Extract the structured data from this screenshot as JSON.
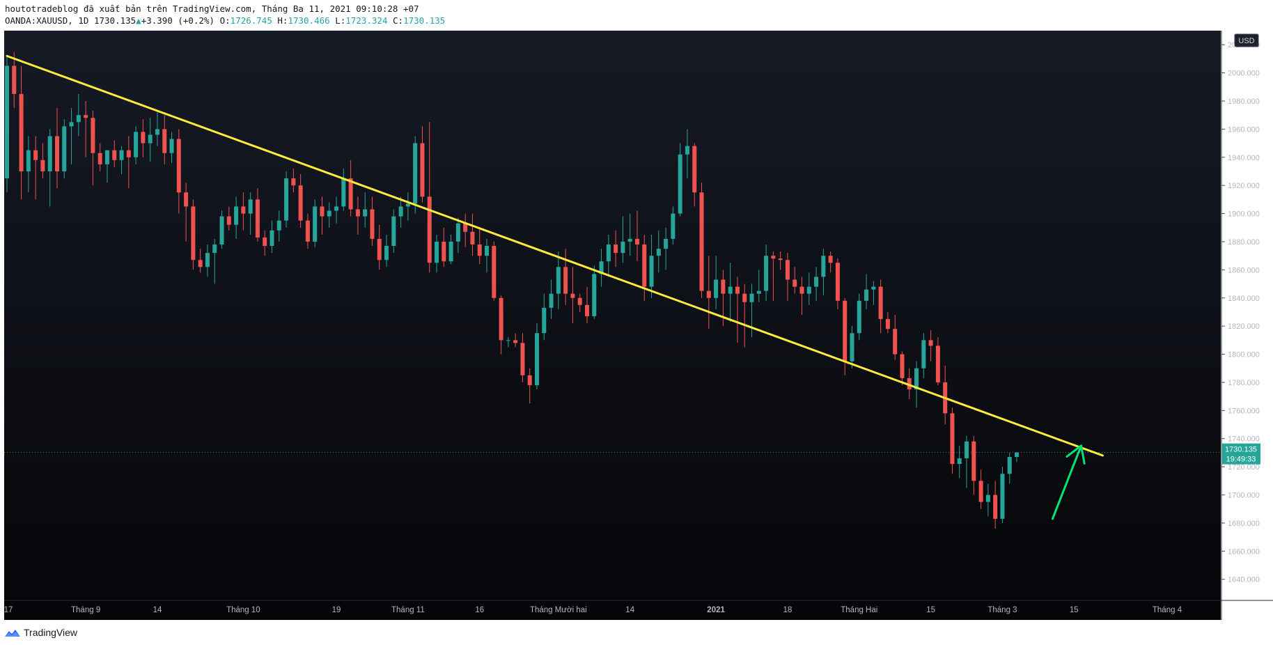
{
  "header": {
    "published_line": "houtotradeblog đã xuất bản trên TradingView.com, Tháng Ba 11, 2021 09:10:28 +07",
    "symbol_line": {
      "symbol": "OANDA:XAUUSD, 1D",
      "last": "1730.135",
      "change_arrow": "▲",
      "change": "+3.390 (+0.2%)",
      "o_label": "O:",
      "o": "1726.745",
      "h_label": "H:",
      "h": "1730.466",
      "l_label": "L:",
      "l": "1723.324",
      "c_label": "C:",
      "c": "1730.135"
    }
  },
  "footer": {
    "brand": "TradingView",
    "logo_icon": "tradingview-logo-icon"
  },
  "colors": {
    "background": "#0b0c0f",
    "up": "#26a69a",
    "down": "#ef5350",
    "trendline": "#ffeb3b",
    "arrow": "#00e676",
    "axis_text": "#b2b5be"
  },
  "chart_data": {
    "type": "candlestick",
    "symbol": "OANDA:XAUUSD",
    "interval": "1D",
    "currency": "USD",
    "ylim": [
      1625,
      2030
    ],
    "y_ticks": [
      "2020.000",
      "2000.000",
      "1980.000",
      "1960.000",
      "1940.000",
      "1920.000",
      "1900.000",
      "1880.000",
      "1860.000",
      "1840.000",
      "1820.000",
      "1800.000",
      "1780.000",
      "1760.000",
      "1740.000",
      "1720.000",
      "1700.000",
      "1680.000",
      "1660.000",
      "1640.000"
    ],
    "x_ticks": [
      {
        "label": "17",
        "bar": 0
      },
      {
        "label": "Tháng 9",
        "bar": 11
      },
      {
        "label": "14",
        "bar": 21
      },
      {
        "label": "Tháng 10",
        "bar": 33
      },
      {
        "label": "19",
        "bar": 46
      },
      {
        "label": "Tháng 11",
        "bar": 56
      },
      {
        "label": "16",
        "bar": 66
      },
      {
        "label": "Tháng Mười hai",
        "bar": 77
      },
      {
        "label": "14",
        "bar": 87
      },
      {
        "label": "2021",
        "bar": 99
      },
      {
        "label": "18",
        "bar": 109
      },
      {
        "label": "Tháng Hai",
        "bar": 119
      },
      {
        "label": "15",
        "bar": 129
      },
      {
        "label": "Tháng 3",
        "bar": 139
      },
      {
        "label": "15",
        "bar": 149
      },
      {
        "label": "Tháng 4",
        "bar": 162
      }
    ],
    "x_bar_range": [
      0,
      166
    ],
    "last_price": "1730.135",
    "countdown": "19:49:33",
    "ohlc": [
      [
        1925,
        2012,
        1915,
        2005
      ],
      [
        2005,
        2015,
        1975,
        1985
      ],
      [
        1985,
        2005,
        1910,
        1930
      ],
      [
        1930,
        1955,
        1915,
        1945
      ],
      [
        1945,
        1955,
        1910,
        1938
      ],
      [
        1938,
        1950,
        1925,
        1930
      ],
      [
        1930,
        1960,
        1905,
        1955
      ],
      [
        1955,
        1975,
        1918,
        1930
      ],
      [
        1930,
        1967,
        1925,
        1962
      ],
      [
        1962,
        1975,
        1935,
        1965
      ],
      [
        1965,
        1985,
        1955,
        1970
      ],
      [
        1970,
        1980,
        1940,
        1968
      ],
      [
        1968,
        1973,
        1920,
        1943
      ],
      [
        1943,
        1950,
        1930,
        1935
      ],
      [
        1935,
        1945,
        1922,
        1945
      ],
      [
        1945,
        1952,
        1933,
        1938
      ],
      [
        1938,
        1948,
        1928,
        1945
      ],
      [
        1945,
        1955,
        1918,
        1940
      ],
      [
        1940,
        1962,
        1935,
        1958
      ],
      [
        1958,
        1967,
        1940,
        1950
      ],
      [
        1950,
        1968,
        1937,
        1956
      ],
      [
        1956,
        1972,
        1948,
        1960
      ],
      [
        1960,
        1970,
        1935,
        1943
      ],
      [
        1943,
        1958,
        1936,
        1953
      ],
      [
        1953,
        1960,
        1900,
        1915
      ],
      [
        1915,
        1922,
        1880,
        1905
      ],
      [
        1905,
        1910,
        1860,
        1867
      ],
      [
        1867,
        1875,
        1858,
        1862
      ],
      [
        1862,
        1878,
        1855,
        1872
      ],
      [
        1872,
        1882,
        1850,
        1878
      ],
      [
        1878,
        1902,
        1875,
        1898
      ],
      [
        1898,
        1905,
        1888,
        1892
      ],
      [
        1892,
        1912,
        1882,
        1905
      ],
      [
        1905,
        1915,
        1888,
        1900
      ],
      [
        1900,
        1915,
        1885,
        1910
      ],
      [
        1910,
        1918,
        1880,
        1883
      ],
      [
        1883,
        1888,
        1870,
        1877
      ],
      [
        1877,
        1895,
        1872,
        1888
      ],
      [
        1888,
        1902,
        1880,
        1895
      ],
      [
        1895,
        1930,
        1890,
        1925
      ],
      [
        1925,
        1932,
        1915,
        1920
      ],
      [
        1920,
        1928,
        1890,
        1895
      ],
      [
        1895,
        1900,
        1875,
        1880
      ],
      [
        1880,
        1910,
        1876,
        1905
      ],
      [
        1905,
        1912,
        1885,
        1898
      ],
      [
        1898,
        1908,
        1890,
        1902
      ],
      [
        1902,
        1912,
        1893,
        1905
      ],
      [
        1905,
        1932,
        1902,
        1925
      ],
      [
        1925,
        1938,
        1898,
        1903
      ],
      [
        1903,
        1912,
        1885,
        1898
      ],
      [
        1898,
        1915,
        1890,
        1903
      ],
      [
        1903,
        1912,
        1877,
        1882
      ],
      [
        1882,
        1892,
        1860,
        1867
      ],
      [
        1867,
        1885,
        1862,
        1877
      ],
      [
        1877,
        1903,
        1872,
        1898
      ],
      [
        1898,
        1912,
        1890,
        1905
      ],
      [
        1905,
        1915,
        1895,
        1907
      ],
      [
        1907,
        1955,
        1900,
        1950
      ],
      [
        1950,
        1962,
        1908,
        1912
      ],
      [
        1912,
        1965,
        1858,
        1865
      ],
      [
        1865,
        1885,
        1858,
        1880
      ],
      [
        1880,
        1890,
        1862,
        1866
      ],
      [
        1866,
        1885,
        1864,
        1880
      ],
      [
        1880,
        1897,
        1872,
        1893
      ],
      [
        1893,
        1900,
        1876,
        1887
      ],
      [
        1887,
        1900,
        1870,
        1878
      ],
      [
        1878,
        1890,
        1864,
        1870
      ],
      [
        1870,
        1882,
        1858,
        1877
      ],
      [
        1877,
        1880,
        1838,
        1840
      ],
      [
        1840,
        1842,
        1800,
        1810
      ],
      [
        1810,
        1812,
        1805,
        1810
      ],
      [
        1810,
        1815,
        1805,
        1808
      ],
      [
        1808,
        1815,
        1780,
        1785
      ],
      [
        1785,
        1790,
        1765,
        1778
      ],
      [
        1778,
        1822,
        1775,
        1815
      ],
      [
        1815,
        1843,
        1810,
        1833
      ],
      [
        1833,
        1853,
        1825,
        1843
      ],
      [
        1843,
        1873,
        1832,
        1862
      ],
      [
        1862,
        1875,
        1835,
        1843
      ],
      [
        1843,
        1862,
        1822,
        1840
      ],
      [
        1840,
        1843,
        1830,
        1835
      ],
      [
        1835,
        1848,
        1822,
        1827
      ],
      [
        1827,
        1863,
        1825,
        1857
      ],
      [
        1857,
        1875,
        1848,
        1866
      ],
      [
        1866,
        1885,
        1855,
        1878
      ],
      [
        1878,
        1888,
        1862,
        1872
      ],
      [
        1872,
        1898,
        1865,
        1880
      ],
      [
        1880,
        1900,
        1870,
        1882
      ],
      [
        1882,
        1902,
        1866,
        1878
      ],
      [
        1878,
        1885,
        1838,
        1848
      ],
      [
        1848,
        1885,
        1840,
        1870
      ],
      [
        1870,
        1888,
        1858,
        1875
      ],
      [
        1875,
        1890,
        1860,
        1882
      ],
      [
        1882,
        1905,
        1878,
        1900
      ],
      [
        1900,
        1950,
        1898,
        1942
      ],
      [
        1942,
        1960,
        1925,
        1948
      ],
      [
        1948,
        1950,
        1905,
        1915
      ],
      [
        1915,
        1922,
        1840,
        1845
      ],
      [
        1845,
        1870,
        1818,
        1840
      ],
      [
        1840,
        1870,
        1832,
        1853
      ],
      [
        1853,
        1860,
        1820,
        1843
      ],
      [
        1843,
        1865,
        1823,
        1848
      ],
      [
        1848,
        1855,
        1808,
        1843
      ],
      [
        1843,
        1850,
        1805,
        1837
      ],
      [
        1837,
        1850,
        1812,
        1843
      ],
      [
        1843,
        1860,
        1837,
        1845
      ],
      [
        1845,
        1878,
        1838,
        1870
      ],
      [
        1870,
        1873,
        1838,
        1868
      ],
      [
        1868,
        1873,
        1860,
        1867
      ],
      [
        1867,
        1872,
        1838,
        1853
      ],
      [
        1853,
        1862,
        1843,
        1848
      ],
      [
        1848,
        1855,
        1828,
        1843
      ],
      [
        1843,
        1858,
        1835,
        1848
      ],
      [
        1848,
        1862,
        1838,
        1855
      ],
      [
        1855,
        1875,
        1842,
        1870
      ],
      [
        1870,
        1873,
        1858,
        1865
      ],
      [
        1865,
        1868,
        1832,
        1838
      ],
      [
        1838,
        1840,
        1785,
        1795
      ],
      [
        1795,
        1820,
        1790,
        1815
      ],
      [
        1815,
        1843,
        1810,
        1838
      ],
      [
        1838,
        1857,
        1832,
        1846
      ],
      [
        1846,
        1852,
        1835,
        1848
      ],
      [
        1848,
        1853,
        1815,
        1825
      ],
      [
        1825,
        1830,
        1815,
        1818
      ],
      [
        1818,
        1828,
        1796,
        1800
      ],
      [
        1800,
        1802,
        1778,
        1783
      ],
      [
        1783,
        1790,
        1768,
        1775
      ],
      [
        1775,
        1795,
        1762,
        1790
      ],
      [
        1790,
        1815,
        1783,
        1810
      ],
      [
        1810,
        1817,
        1795,
        1806
      ],
      [
        1806,
        1812,
        1778,
        1780
      ],
      [
        1780,
        1792,
        1750,
        1758
      ],
      [
        1758,
        1762,
        1715,
        1722
      ],
      [
        1722,
        1735,
        1712,
        1726
      ],
      [
        1726,
        1742,
        1705,
        1738
      ],
      [
        1738,
        1742,
        1700,
        1710
      ],
      [
        1710,
        1718,
        1690,
        1695
      ],
      [
        1695,
        1708,
        1685,
        1700
      ],
      [
        1700,
        1710,
        1676,
        1683
      ],
      [
        1683,
        1720,
        1680,
        1715
      ],
      [
        1715,
        1730,
        1708,
        1727
      ],
      [
        1727,
        1730.466,
        1723.324,
        1730.135
      ]
    ],
    "trendline": {
      "color": "#ffeb3b",
      "from": {
        "bar": 0,
        "price": 2012
      },
      "to": {
        "bar": 153,
        "price": 1728
      }
    },
    "annotation_arrow": {
      "color": "#00e676",
      "from": {
        "bar": 146,
        "price": 1683
      },
      "to": {
        "bar": 150,
        "price": 1735
      }
    }
  }
}
